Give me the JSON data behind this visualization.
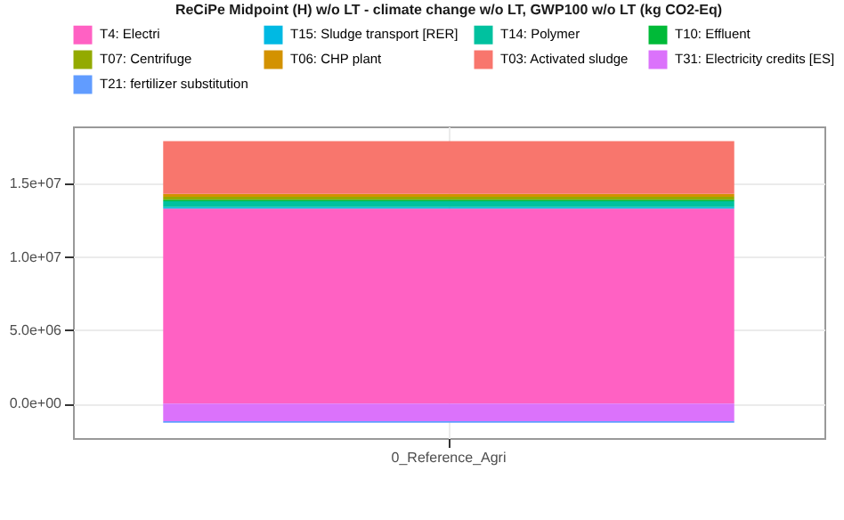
{
  "chart_data": {
    "type": "bar",
    "stacked": true,
    "title": "ReCiPe Midpoint (H) w/o LT - climate change w/o LT, GWP100 w/o LT (kg CO2-Eq)",
    "categories": [
      "0_Reference_Agri"
    ],
    "series": [
      {
        "name": "T4: Electri",
        "color": "#ff61c3",
        "values": [
          13300000
        ]
      },
      {
        "name": "T15: Sludge transport [RER]",
        "color": "#00b9e3",
        "values": [
          100000
        ]
      },
      {
        "name": "T14: Polymer",
        "color": "#00c19f",
        "values": [
          400000
        ]
      },
      {
        "name": "T10: Effluent",
        "color": "#00ba38",
        "values": [
          100000
        ]
      },
      {
        "name": "T07: Centrifuge",
        "color": "#93aa00",
        "values": [
          200000
        ]
      },
      {
        "name": "T06: CHP plant",
        "color": "#d39200",
        "values": [
          200000
        ]
      },
      {
        "name": "T03: Activated  sludge",
        "color": "#f8766d",
        "values": [
          3600000
        ]
      },
      {
        "name": "T31: Electricity credits [ES]",
        "color": "#db72fb",
        "values": [
          -1200000
        ]
      },
      {
        "name": "T21: fertilizer substitution",
        "color": "#619cff",
        "values": [
          -100000
        ]
      }
    ],
    "ylim": [
      -2350000,
      18900000
    ],
    "yticks": [
      {
        "value": 0,
        "label": "0.0e+00"
      },
      {
        "value": 5000000,
        "label": "5.0e+06"
      },
      {
        "value": 10000000,
        "label": "1.0e+07"
      },
      {
        "value": 15000000,
        "label": "1.5e+07"
      }
    ],
    "grid": true,
    "legend": "top"
  }
}
